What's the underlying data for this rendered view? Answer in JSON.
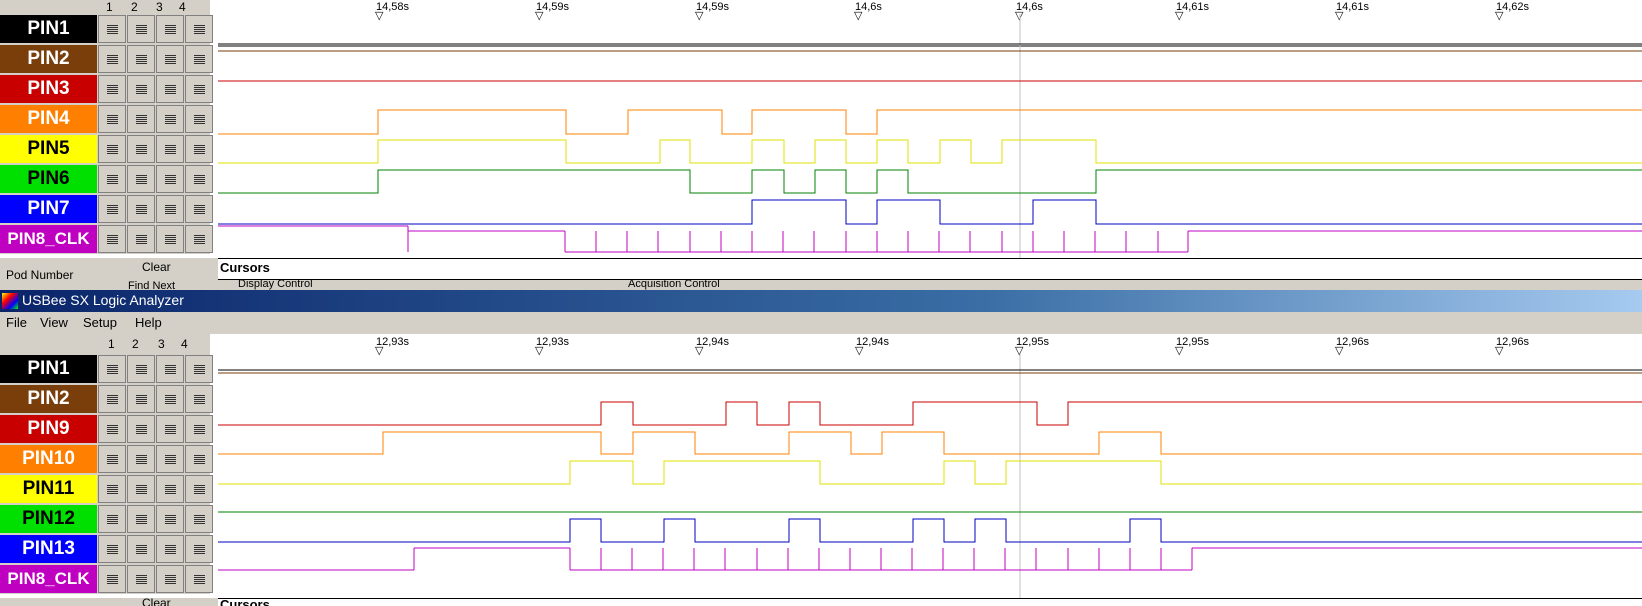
{
  "app_title": "USBee SX Logic Analyzer",
  "menu": [
    "File",
    "View",
    "Setup",
    "Help"
  ],
  "pod_columns": [
    "1",
    "2",
    "3",
    "4"
  ],
  "pod_number_label": "Pod Number",
  "clear_label": "Clear",
  "find_next_label": "Find Next",
  "cursors_label": "Cursors",
  "display_control_label": "Display Control",
  "acquisition_control_label": "Acquisition Control",
  "colors": {
    "black": "#000000",
    "brown": "#7a3e0a",
    "red": "#c80000",
    "orange": "#ff8000",
    "yellow": "#ffff00",
    "green": "#00e000",
    "blue": "#0000ff",
    "magenta": "#c000c0"
  },
  "top": {
    "time_labels": [
      "14,58s",
      "14,59s",
      "14,59s",
      "14,6s",
      "14,6s",
      "14,61s",
      "14,61s",
      "14,62s"
    ],
    "pins": [
      {
        "label": "PIN1",
        "color": "#000000",
        "text": "#ffffff"
      },
      {
        "label": "PIN2",
        "color": "#7a3e0a",
        "text": "#ffffff"
      },
      {
        "label": "PIN3",
        "color": "#c80000",
        "text": "#ffffff"
      },
      {
        "label": "PIN4",
        "color": "#ff8000",
        "text": "#ffffff"
      },
      {
        "label": "PIN5",
        "color": "#ffff00",
        "text": "#000000"
      },
      {
        "label": "PIN6",
        "color": "#00e000",
        "text": "#000000"
      },
      {
        "label": "PIN7",
        "color": "#0000ff",
        "text": "#ffffff"
      },
      {
        "label": "PIN8_CLK",
        "color": "#c000c0",
        "text": "#ffffff"
      }
    ]
  },
  "bottom": {
    "time_labels": [
      "12,93s",
      "12,93s",
      "12,94s",
      "12,94s",
      "12,95s",
      "12,95s",
      "12,96s",
      "12,96s"
    ],
    "pins": [
      {
        "label": "PIN1",
        "color": "#000000",
        "text": "#ffffff"
      },
      {
        "label": "PIN2",
        "color": "#7a3e0a",
        "text": "#ffffff"
      },
      {
        "label": "PIN9",
        "color": "#c80000",
        "text": "#ffffff"
      },
      {
        "label": "PIN10",
        "color": "#ff8000",
        "text": "#ffffff"
      },
      {
        "label": "PIN11",
        "color": "#ffff00",
        "text": "#000000"
      },
      {
        "label": "PIN12",
        "color": "#00e000",
        "text": "#000000"
      },
      {
        "label": "PIN13",
        "color": "#0000ff",
        "text": "#ffffff"
      },
      {
        "label": "PIN8_CLK",
        "color": "#c000c0",
        "text": "#ffffff"
      }
    ]
  }
}
